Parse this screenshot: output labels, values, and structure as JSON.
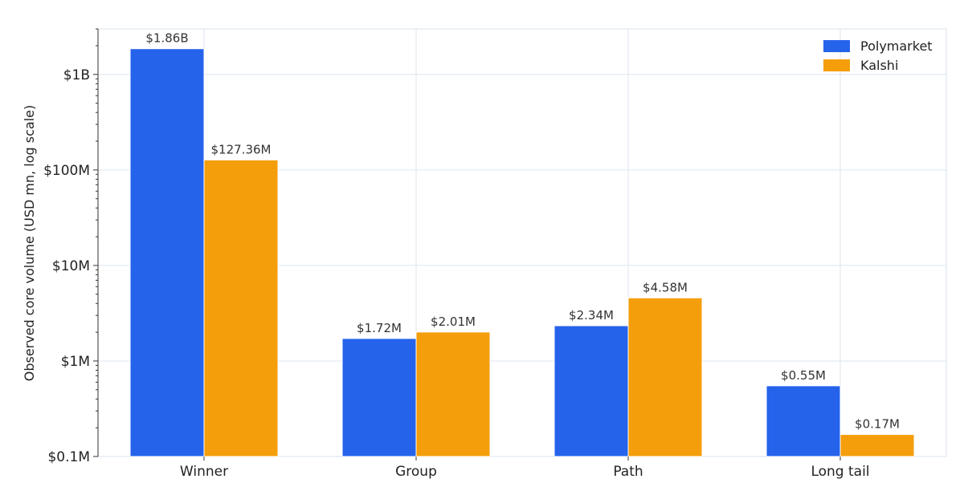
{
  "chart_data": {
    "type": "bar",
    "categories": [
      "Winner",
      "Group",
      "Path",
      "Long tail"
    ],
    "series": [
      {
        "name": "Polymarket",
        "color": "#2563eb",
        "values": [
          1860,
          1.72,
          2.34,
          0.55
        ],
        "labels": [
          "$1.86B",
          "$1.72M",
          "$2.34M",
          "$0.55M"
        ]
      },
      {
        "name": "Kalshi",
        "color": "#f59e0b",
        "values": [
          127.36,
          2.01,
          4.58,
          0.17
        ],
        "labels": [
          "$127.36M",
          "$2.01M",
          "$4.58M",
          "$0.17M"
        ]
      }
    ],
    "title": "",
    "xlabel": "",
    "ylabel": "Observed core volume (USD mn, log scale)",
    "yscale": "log",
    "ylim": [
      0.1,
      3000
    ],
    "yticks": [
      0.1,
      1,
      10,
      100,
      1000
    ],
    "ytick_labels": [
      "$0.1M",
      "$1M",
      "$10M",
      "$100M",
      "$1B"
    ],
    "grid": true,
    "legend_position": "top-right"
  }
}
